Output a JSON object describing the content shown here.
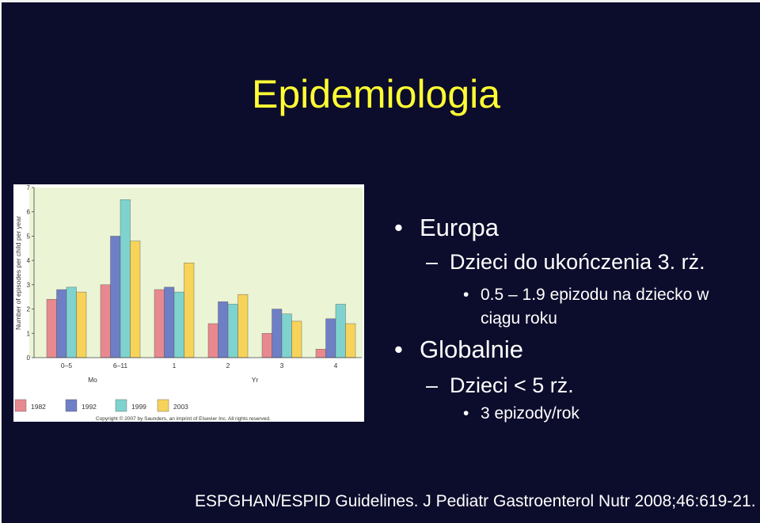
{
  "slide": {
    "title": "Epidemiologia",
    "bullets": {
      "europe": "Europa",
      "europe_sub": "Dzieci do ukończenia 3. rż.",
      "europe_detail_line1": "0.5 – 1.9 epizodu na dziecko w",
      "europe_detail_line2": "ciągu roku",
      "global": "Globalnie",
      "global_sub": "Dzieci < 5 rż.",
      "global_detail": "3 epizody/rok"
    },
    "footer": "ESPGHAN/ESPID Guidelines. J Pediatr Gastroenterol Nutr 2008;46:619-21.",
    "bullet_glyph": "•",
    "dash_glyph": "–"
  },
  "chart_data": {
    "type": "bar",
    "ylabel": "Number of episodes per child per year",
    "ylim": [
      0,
      7
    ],
    "yticks": [
      "0",
      "1",
      "2",
      "3",
      "4",
      "5",
      "6",
      "7"
    ],
    "categories": [
      "0–5",
      "6–11",
      "1",
      "2",
      "3",
      "4"
    ],
    "group_labels": [
      "Mo",
      "Yr"
    ],
    "series": [
      {
        "name": "1982",
        "color": "#e8898f",
        "values": [
          2.4,
          3.0,
          2.8,
          1.4,
          1.0,
          0.35
        ]
      },
      {
        "name": "1992",
        "color": "#6f7fc6",
        "values": [
          2.8,
          5.0,
          2.9,
          2.3,
          2.0,
          1.6
        ]
      },
      {
        "name": "1999",
        "color": "#7fd3cf",
        "values": [
          2.9,
          6.5,
          2.7,
          2.2,
          1.8,
          2.2
        ]
      },
      {
        "name": "2003",
        "color": "#f7d35a",
        "values": [
          2.7,
          4.8,
          3.9,
          2.6,
          1.5,
          1.4
        ]
      }
    ],
    "legend_placement": "bottom",
    "copyright": "Copyright © 2007 by Saunders, an imprint of Elsevier Inc. All rights reserved.",
    "plot_bg": "#ebf4d4",
    "grid": false
  }
}
